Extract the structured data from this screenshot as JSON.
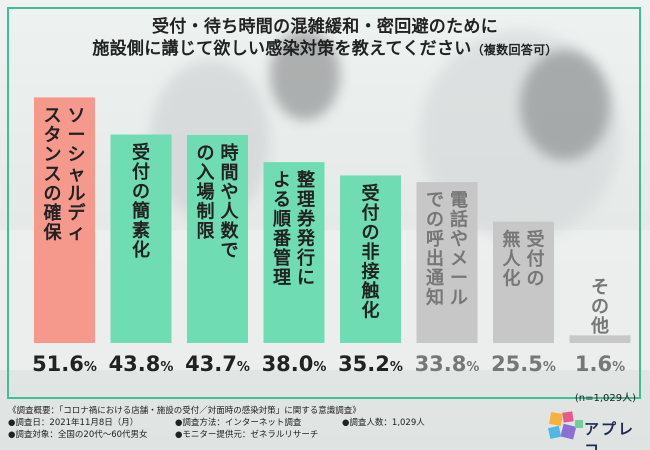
{
  "title": {
    "line1": "受付・待ち時間の混雑緩和・密回避のために",
    "line2": "施設側に講じて欲しい感染対策を教えてください",
    "line2_sub": "（複数回答可）"
  },
  "chart_data": {
    "type": "bar",
    "categories": [
      "ソーシャルディスタンスの確保",
      "受付の簡素化",
      "時間や人数での入場制限",
      "整理券発行による順番管理",
      "受付の非接触化",
      "電話やメールでの呼出通知",
      "受付の無人化",
      "その他"
    ],
    "values": [
      51.6,
      43.8,
      43.7,
      38.0,
      35.2,
      33.8,
      25.5,
      1.6
    ],
    "value_labels": [
      "51.6",
      "43.8",
      "43.7",
      "38.0",
      "35.2",
      "33.8",
      "25.5",
      "1.6"
    ],
    "unit": "%",
    "colors": [
      "#f4998c",
      "#6fdcb3",
      "#6fdcb3",
      "#6fdcb3",
      "#6fdcb3",
      "#c7c7c7",
      "#c7c7c7",
      "#c7c7c7"
    ],
    "label_colors": [
      "#222222",
      "#222222",
      "#222222",
      "#222222",
      "#222222",
      "#777777",
      "#777777",
      "#777777"
    ],
    "ylim": [
      0,
      55
    ]
  },
  "note": "(n=1,029人)",
  "footer": {
    "line1": "《調査概要：「コロナ禍における店舗・施設の受付／対面時の感染対策」に関する意識調査》",
    "date": "●調査日：2021年11月8日（月）",
    "method": "●調査方法：インターネット調査",
    "count": "●調査人数：1,029人",
    "target": "●調査対象：全国の20代～60代男女",
    "provider": "●モニター提供元：ゼネラルリサーチ"
  },
  "logo": {
    "text": "アプレコ"
  },
  "colors": {
    "frame": "#3dbf98",
    "accent_red": "#f4998c",
    "accent_green": "#6fdcb3",
    "gray": "#c7c7c7"
  }
}
